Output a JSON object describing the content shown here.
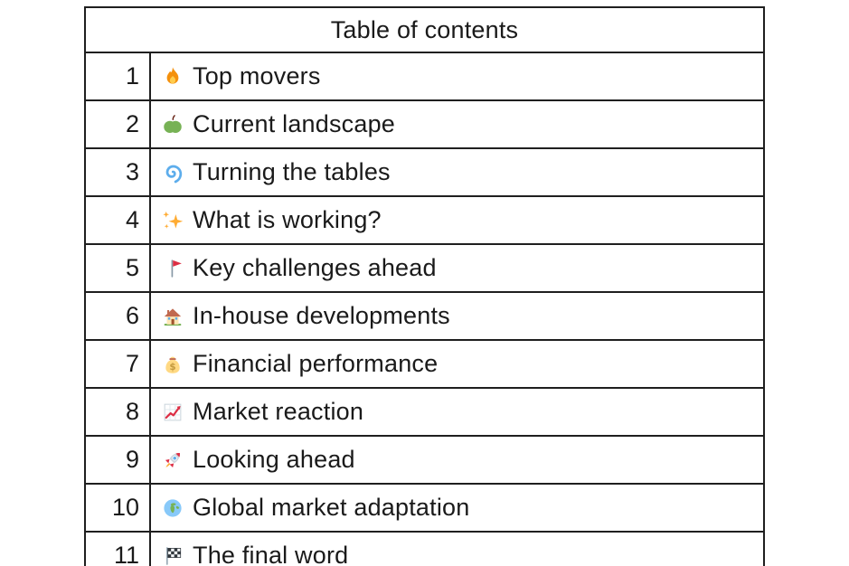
{
  "table": {
    "title": "Table of contents",
    "rows": [
      {
        "number": "1",
        "icon": "fire-icon",
        "emoji": "🔥",
        "label": "Top movers"
      },
      {
        "number": "2",
        "icon": "green-apple-icon",
        "emoji": "🍏",
        "label": "Current landscape"
      },
      {
        "number": "3",
        "icon": "cyclone-icon",
        "emoji": "🌀",
        "label": "Turning the tables"
      },
      {
        "number": "4",
        "icon": "sparkles-icon",
        "emoji": "✨",
        "label": "What is working?"
      },
      {
        "number": "5",
        "icon": "triangular-flag-icon",
        "emoji": "🚩",
        "label": "Key challenges ahead"
      },
      {
        "number": "6",
        "icon": "house-icon",
        "emoji": "🏠",
        "label": "In-house developments"
      },
      {
        "number": "7",
        "icon": "money-bag-icon",
        "emoji": "💰",
        "label": "Financial performance"
      },
      {
        "number": "8",
        "icon": "chart-increasing-icon",
        "emoji": "📈",
        "label": "Market reaction"
      },
      {
        "number": "9",
        "icon": "rocket-icon",
        "emoji": "🚀",
        "label": "Looking ahead"
      },
      {
        "number": "10",
        "icon": "globe-europe-africa-icon",
        "emoji": "🌍",
        "label": "Global market adaptation"
      },
      {
        "number": "11",
        "icon": "chequered-flag-icon",
        "emoji": "🏁",
        "label": "The final word"
      }
    ],
    "colors": {
      "border": "#1f1f1f",
      "text": "#1a1a1a",
      "background": "#ffffff"
    }
  }
}
